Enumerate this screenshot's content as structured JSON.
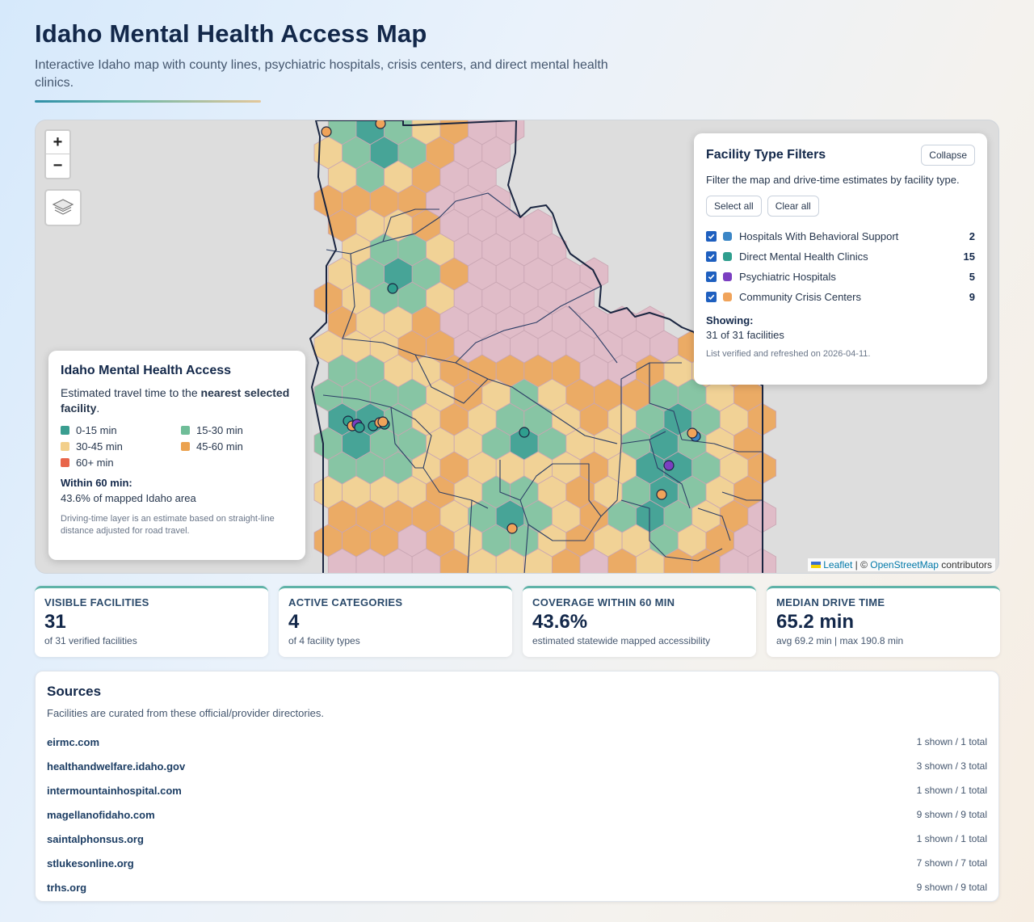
{
  "header": {
    "title": "Idaho Mental Health Access Map",
    "subtitle": "Interactive Idaho map with county lines, psychiatric hospitals, crisis centers, and direct mental health clinics."
  },
  "map": {
    "zoom_in_label": "+",
    "zoom_out_label": "−",
    "attribution": {
      "leaflet": "Leaflet",
      "separator": " | © ",
      "osm": "OpenStreetMap",
      "suffix": " contributors"
    }
  },
  "legend": {
    "title": "Idaho Mental Health Access",
    "desc_prefix": "Estimated travel time to the ",
    "desc_bold": "nearest selected facility",
    "desc_suffix": ".",
    "bins": [
      {
        "label": "0-15 min",
        "color": "#3a9e90"
      },
      {
        "label": "15-30 min",
        "color": "#6fbd98"
      },
      {
        "label": "30-45 min",
        "color": "#f2cf8a"
      },
      {
        "label": "45-60 min",
        "color": "#eba24f"
      },
      {
        "label": "60+ min",
        "color": "#e8654a"
      }
    ],
    "within_label": "Within 60 min:",
    "within_value": "43.6% of mapped Idaho area",
    "note": "Driving-time layer is an estimate based on straight-line distance adjusted for road travel."
  },
  "filters": {
    "title": "Facility Type Filters",
    "collapse_label": "Collapse",
    "desc": "Filter the map and drive-time estimates by facility type.",
    "select_all_label": "Select all",
    "clear_all_label": "Clear all",
    "items": [
      {
        "name": "Hospitals With Behavioral Support",
        "count": "2",
        "color": "#3b86c6"
      },
      {
        "name": "Direct Mental Health Clinics",
        "count": "15",
        "color": "#2f9e8e"
      },
      {
        "name": "Psychiatric Hospitals",
        "count": "5",
        "color": "#7b3fc1"
      },
      {
        "name": "Community Crisis Centers",
        "count": "9",
        "color": "#f0a35a"
      }
    ],
    "showing_label": "Showing:",
    "showing_value": "31 of 31 facilities",
    "verified": "List verified and refreshed on 2026-04-11."
  },
  "stats": [
    {
      "label": "VISIBLE FACILITIES",
      "value": "31",
      "sub": "of 31 verified facilities"
    },
    {
      "label": "ACTIVE CATEGORIES",
      "value": "4",
      "sub": "of 4 facility types"
    },
    {
      "label": "COVERAGE WITHIN 60 MIN",
      "value": "43.6%",
      "sub": "estimated statewide mapped accessibility"
    },
    {
      "label": "MEDIAN DRIVE TIME",
      "value": "65.2 min",
      "sub": "avg 69.2 min | max 190.8 min"
    }
  ],
  "sources": {
    "title": "Sources",
    "desc": "Facilities are curated from these official/provider directories.",
    "items": [
      {
        "name": "eirmc.com",
        "count": "1 shown / 1 total"
      },
      {
        "name": "healthandwelfare.idaho.gov",
        "count": "3 shown / 3 total"
      },
      {
        "name": "intermountainhospital.com",
        "count": "1 shown / 1 total"
      },
      {
        "name": "magellanofidaho.com",
        "count": "9 shown / 9 total"
      },
      {
        "name": "saintalphonsus.org",
        "count": "1 shown / 1 total"
      },
      {
        "name": "stlukesonline.org",
        "count": "7 shown / 7 total"
      },
      {
        "name": "trhs.org",
        "count": "9 shown / 9 total"
      }
    ]
  }
}
